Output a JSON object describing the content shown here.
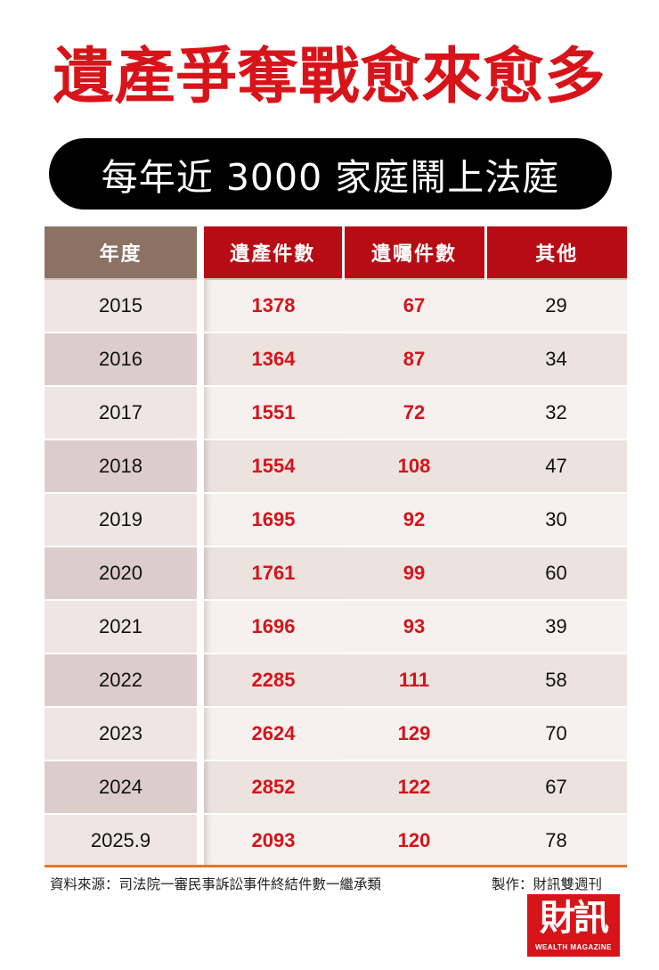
{
  "title": "遺產爭奪戰愈來愈多",
  "subtitle": "每年近 3000 家庭鬧上法庭",
  "chart_data": {
    "type": "table",
    "columns": [
      "年度",
      "遺產件數",
      "遺囑件數",
      "其他"
    ],
    "rows": [
      [
        "2015",
        1378,
        67,
        29
      ],
      [
        "2016",
        1364,
        87,
        34
      ],
      [
        "2017",
        1551,
        72,
        32
      ],
      [
        "2018",
        1554,
        108,
        47
      ],
      [
        "2019",
        1695,
        92,
        30
      ],
      [
        "2020",
        1761,
        99,
        60
      ],
      [
        "2021",
        1696,
        93,
        39
      ],
      [
        "2022",
        2285,
        111,
        58
      ],
      [
        "2023",
        2624,
        129,
        70
      ],
      [
        "2024",
        2852,
        122,
        67
      ],
      [
        "2025.9",
        2093,
        120,
        78
      ]
    ]
  },
  "footer": {
    "source": "資料來源：司法院一審民事訴訟事件終結件數一繼承類",
    "maker": "製作：財訊雙週刊"
  },
  "logo": {
    "main": "財訊",
    "sub": "WEALTH MAGAZINE"
  },
  "colors": {
    "title_red": "#d7141a",
    "header_brown": "#8b7263",
    "header_red": "#b80c14",
    "number_red": "#d4141c",
    "rule_orange": "#e8752b"
  }
}
